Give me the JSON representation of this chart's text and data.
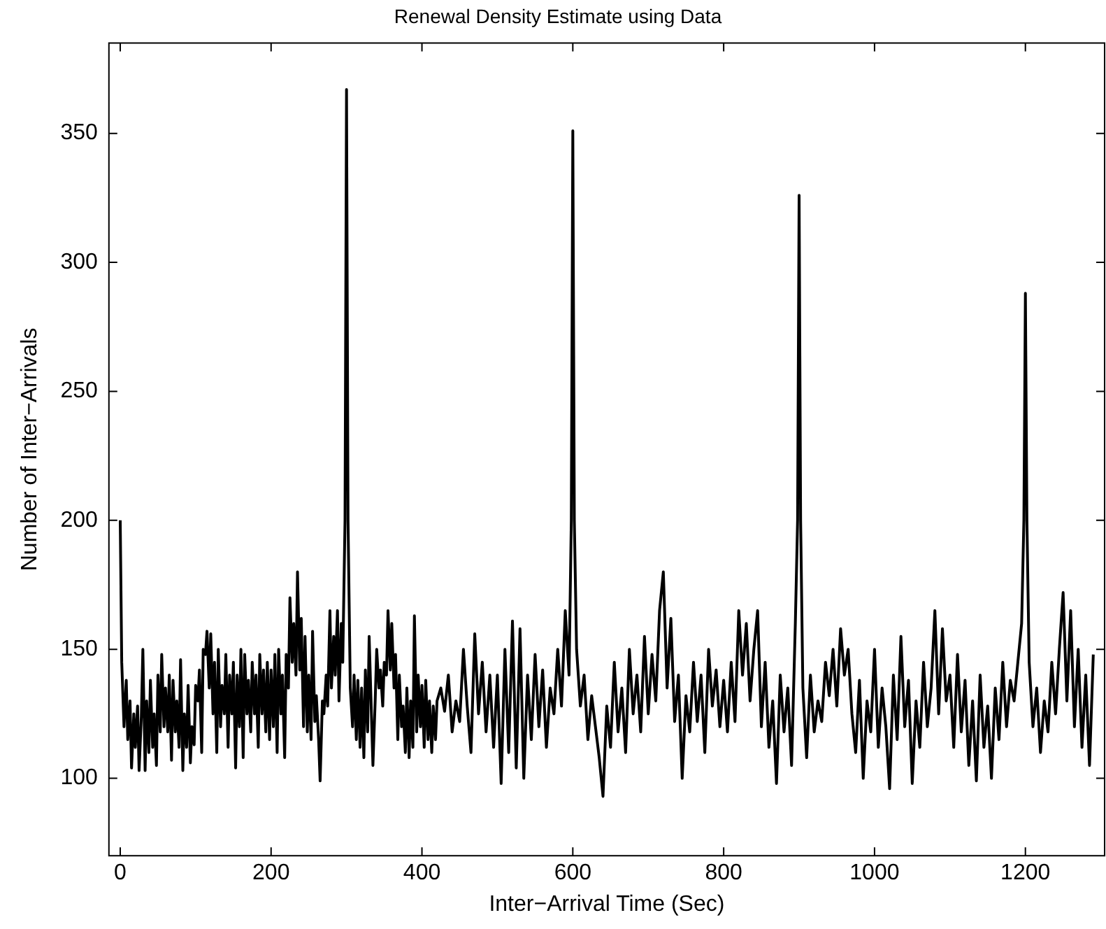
{
  "chart_data": {
    "type": "line",
    "title": "Renewal Density Estimate using Data",
    "xlabel": "Inter−Arrival Time (Sec)",
    "ylabel": "Number of Inter−Arrivals",
    "xlim": [
      -15,
      1305
    ],
    "xticks": [
      0,
      200,
      400,
      600,
      800,
      1000,
      1200
    ],
    "ylim": [
      70,
      385
    ],
    "yticks": [
      100,
      150,
      200,
      250,
      300,
      350
    ],
    "series": [
      {
        "color": "#000000",
        "x": [
          0,
          2,
          5,
          8,
          10,
          13,
          15,
          18,
          20,
          23,
          25,
          28,
          30,
          33,
          35,
          38,
          40,
          43,
          45,
          48,
          50,
          53,
          55,
          58,
          60,
          63,
          65,
          68,
          70,
          73,
          75,
          78,
          80,
          83,
          85,
          88,
          90,
          93,
          95,
          98,
          100,
          103,
          105,
          108,
          110,
          113,
          115,
          118,
          120,
          123,
          125,
          128,
          130,
          133,
          135,
          138,
          140,
          143,
          145,
          148,
          150,
          153,
          155,
          158,
          160,
          163,
          165,
          168,
          170,
          173,
          175,
          178,
          180,
          183,
          185,
          188,
          190,
          193,
          195,
          198,
          200,
          203,
          205,
          208,
          210,
          213,
          215,
          218,
          220,
          223,
          225,
          228,
          230,
          233,
          235,
          238,
          240,
          243,
          245,
          248,
          250,
          253,
          255,
          258,
          260,
          263,
          265,
          268,
          270,
          273,
          275,
          278,
          280,
          283,
          285,
          288,
          290,
          293,
          295,
          298,
          300,
          302,
          305,
          308,
          310,
          313,
          315,
          318,
          320,
          323,
          325,
          328,
          330,
          333,
          335,
          338,
          340,
          343,
          345,
          348,
          350,
          353,
          355,
          358,
          360,
          363,
          365,
          368,
          370,
          373,
          375,
          378,
          380,
          383,
          385,
          388,
          390,
          393,
          395,
          398,
          400,
          403,
          405,
          408,
          410,
          413,
          415,
          418,
          420,
          425,
          430,
          435,
          440,
          445,
          450,
          455,
          460,
          465,
          470,
          475,
          480,
          485,
          490,
          495,
          500,
          505,
          510,
          515,
          520,
          525,
          530,
          535,
          540,
          545,
          550,
          555,
          560,
          565,
          570,
          575,
          580,
          585,
          590,
          595,
          598,
          600,
          602,
          605,
          610,
          615,
          620,
          625,
          630,
          635,
          640,
          645,
          650,
          655,
          660,
          665,
          670,
          675,
          680,
          685,
          690,
          695,
          700,
          705,
          710,
          715,
          720,
          725,
          730,
          735,
          740,
          745,
          750,
          755,
          760,
          765,
          770,
          775,
          780,
          785,
          790,
          795,
          800,
          805,
          810,
          815,
          820,
          825,
          830,
          835,
          840,
          845,
          850,
          855,
          860,
          865,
          870,
          875,
          880,
          885,
          890,
          895,
          898,
          900,
          902,
          905,
          910,
          915,
          920,
          925,
          930,
          935,
          940,
          945,
          950,
          955,
          960,
          965,
          970,
          975,
          980,
          985,
          990,
          995,
          1000,
          1005,
          1010,
          1015,
          1020,
          1025,
          1030,
          1035,
          1040,
          1045,
          1050,
          1055,
          1060,
          1065,
          1070,
          1075,
          1080,
          1085,
          1090,
          1095,
          1100,
          1105,
          1110,
          1115,
          1120,
          1125,
          1130,
          1135,
          1140,
          1145,
          1150,
          1155,
          1160,
          1165,
          1170,
          1175,
          1180,
          1185,
          1190,
          1195,
          1198,
          1200,
          1202,
          1205,
          1210,
          1215,
          1220,
          1225,
          1230,
          1235,
          1240,
          1245,
          1250,
          1255,
          1260,
          1265,
          1270,
          1275,
          1280,
          1285,
          1290
        ],
        "values": [
          200,
          145,
          120,
          138,
          115,
          130,
          104,
          125,
          112,
          128,
          103,
          124,
          150,
          103,
          130,
          110,
          138,
          112,
          125,
          105,
          140,
          118,
          148,
          120,
          135,
          118,
          140,
          107,
          138,
          118,
          130,
          112,
          146,
          103,
          125,
          112,
          136,
          106,
          120,
          113,
          136,
          130,
          142,
          110,
          150,
          148,
          157,
          135,
          156,
          125,
          145,
          110,
          150,
          120,
          136,
          125,
          148,
          112,
          140,
          125,
          145,
          104,
          140,
          120,
          150,
          108,
          148,
          125,
          138,
          118,
          145,
          125,
          140,
          112,
          148,
          125,
          142,
          118,
          145,
          115,
          142,
          120,
          148,
          110,
          150,
          125,
          140,
          108,
          148,
          135,
          170,
          145,
          160,
          140,
          180,
          142,
          162,
          120,
          155,
          118,
          140,
          115,
          157,
          122,
          132,
          115,
          99,
          130,
          125,
          140,
          128,
          165,
          135,
          155,
          140,
          165,
          130,
          160,
          145,
          200,
          367,
          200,
          135,
          120,
          140,
          115,
          138,
          112,
          135,
          108,
          142,
          118,
          155,
          125,
          105,
          130,
          150,
          135,
          142,
          128,
          145,
          140,
          165,
          142,
          160,
          135,
          148,
          115,
          140,
          120,
          128,
          110,
          135,
          108,
          130,
          112,
          163,
          118,
          140,
          120,
          136,
          112,
          138,
          115,
          130,
          110,
          128,
          115,
          130,
          135,
          126,
          140,
          118,
          130,
          122,
          150,
          128,
          110,
          156,
          125,
          145,
          118,
          140,
          112,
          140,
          98,
          150,
          110,
          161,
          104,
          158,
          100,
          140,
          115,
          148,
          120,
          142,
          112,
          135,
          125,
          150,
          128,
          165,
          140,
          200,
          351,
          200,
          150,
          128,
          140,
          115,
          132,
          120,
          108,
          93,
          128,
          112,
          145,
          118,
          135,
          110,
          150,
          125,
          140,
          118,
          155,
          125,
          148,
          130,
          165,
          180,
          135,
          162,
          122,
          140,
          100,
          132,
          118,
          145,
          122,
          140,
          110,
          150,
          128,
          142,
          120,
          138,
          118,
          145,
          122,
          165,
          140,
          160,
          130,
          150,
          165,
          120,
          145,
          112,
          130,
          98,
          140,
          118,
          135,
          105,
          160,
          200,
          326,
          200,
          135,
          108,
          140,
          118,
          130,
          122,
          145,
          132,
          150,
          128,
          158,
          140,
          150,
          125,
          110,
          138,
          100,
          130,
          118,
          150,
          112,
          135,
          120,
          96,
          140,
          115,
          155,
          120,
          138,
          98,
          130,
          112,
          145,
          120,
          135,
          165,
          125,
          158,
          130,
          140,
          112,
          148,
          118,
          138,
          105,
          130,
          99,
          140,
          112,
          128,
          100,
          135,
          115,
          145,
          120,
          138,
          130,
          145,
          160,
          200,
          288,
          200,
          145,
          120,
          135,
          110,
          130,
          118,
          145,
          125,
          150,
          172,
          130,
          165,
          120,
          150,
          112,
          140,
          105,
          148
        ]
      }
    ]
  }
}
